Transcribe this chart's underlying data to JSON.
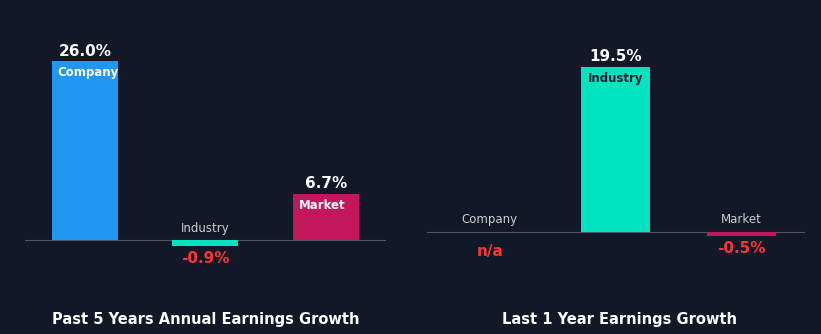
{
  "background_color": "#111827",
  "left_chart": {
    "title": "Past 5 Years Annual Earnings Growth",
    "categories": [
      "Company",
      "Industry",
      "Market"
    ],
    "values": [
      26.0,
      -0.9,
      6.7
    ],
    "colors": [
      "#2196f3",
      "#00e5c0",
      "#c2185b"
    ],
    "bar_labels": [
      "Company",
      "Industry",
      "Market"
    ],
    "bar_label_colors": [
      "#ffffff",
      "#cccccc",
      "#ffffff"
    ],
    "value_labels": [
      "26.0%",
      "-0.9%",
      "6.7%"
    ],
    "value_label_colors": [
      "#ffffff",
      "#ff3333",
      "#ffffff"
    ],
    "ylim": [
      -5,
      32
    ],
    "bar_label_inside": [
      true,
      false,
      true
    ]
  },
  "right_chart": {
    "title": "Last 1 Year Earnings Growth",
    "categories": [
      "Company",
      "Industry",
      "Market"
    ],
    "values": [
      0,
      19.5,
      -0.5
    ],
    "colors": [
      "#2196f3",
      "#00e5c0",
      "#c2185b"
    ],
    "bar_labels": [
      "Company",
      "Industry",
      "Market"
    ],
    "bar_label_colors": [
      "#cccccc",
      "#1a1a2e",
      "#cccccc"
    ],
    "value_labels": [
      "n/a",
      "19.5%",
      "-0.5%"
    ],
    "value_label_colors": [
      "#ff3333",
      "#ffffff",
      "#ff3333"
    ],
    "ylim": [
      -5,
      25
    ],
    "bar_label_inside": [
      false,
      true,
      false
    ]
  },
  "title_color": "#ffffff",
  "label_color": "#cccccc",
  "title_fontsize": 10.5,
  "label_fontsize": 8.5,
  "value_fontsize": 11,
  "bar_width": 0.55
}
